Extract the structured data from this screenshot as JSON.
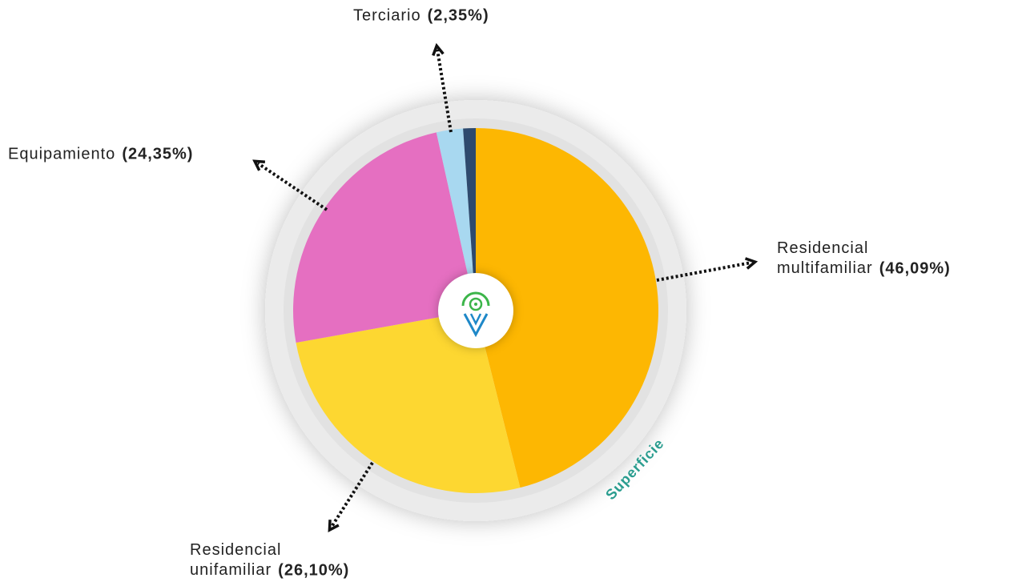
{
  "chart_data": {
    "type": "pie",
    "categories": [
      "Residencial multifamiliar",
      "Residencial unifamiliar",
      "Equipamiento",
      "Terciario",
      null
    ],
    "values": [
      46.09,
      26.1,
      24.35,
      2.35,
      1.11
    ],
    "value_labels": [
      "(46,09%)",
      "(26,10%)",
      "(24,35%)",
      "(2,35%)",
      null
    ],
    "colors": [
      "#fdb702",
      "#fdd731",
      "#e56fc1",
      "#a8d8f0",
      "#2e4a6e"
    ],
    "ring_label": "Superficie"
  }
}
